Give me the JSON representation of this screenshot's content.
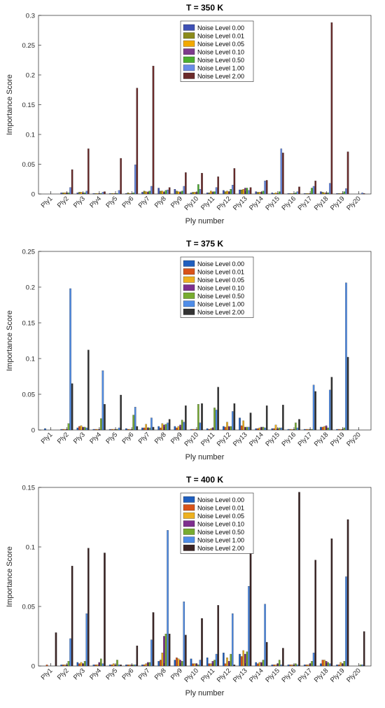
{
  "chart_data": [
    {
      "type": "bar",
      "title": "T = 350 K",
      "xlabel": "Ply number",
      "ylabel": "Importance Score",
      "ylim": [
        0,
        0.3
      ],
      "yticks": [
        "0",
        "0.05",
        "0.1",
        "0.15",
        "0.2",
        "0.25",
        "0.3"
      ],
      "legend_position": "top-center",
      "categories": [
        "Ply1",
        "Ply2",
        "Ply3",
        "Ply4",
        "Ply5",
        "Ply6",
        "Ply7",
        "Ply8",
        "Ply9",
        "Ply10",
        "Ply11",
        "Ply12",
        "Ply13",
        "Ply14",
        "Ply15",
        "Ply16",
        "Ply17",
        "Ply18",
        "Ply19",
        "Ply20"
      ],
      "series": [
        {
          "name": "Noise Level 0.00",
          "color": "#3f51b5",
          "values": [
            0.0,
            0.002,
            0.002,
            0.001,
            0.001,
            0.001,
            0.003,
            0.01,
            0.008,
            0.002,
            0.002,
            0.006,
            0.007,
            0.004,
            0.002,
            0.001,
            0.001,
            0.004,
            0.001,
            0.0
          ]
        },
        {
          "name": "Noise Level 0.01",
          "color": "#8b8b1a",
          "values": [
            0.0,
            0.002,
            0.003,
            0.001,
            0.001,
            0.002,
            0.005,
            0.005,
            0.005,
            0.003,
            0.002,
            0.004,
            0.007,
            0.003,
            0.001,
            0.001,
            0.001,
            0.003,
            0.001,
            0.0
          ]
        },
        {
          "name": "Noise Level 0.05",
          "color": "#f2a900",
          "values": [
            0.0,
            0.002,
            0.003,
            0.001,
            0.001,
            0.001,
            0.004,
            0.005,
            0.004,
            0.003,
            0.005,
            0.005,
            0.008,
            0.003,
            0.002,
            0.001,
            0.001,
            0.002,
            0.001,
            0.0
          ]
        },
        {
          "name": "Noise Level 0.10",
          "color": "#7e3b8c",
          "values": [
            0.0,
            0.002,
            0.002,
            0.001,
            0.001,
            0.001,
            0.003,
            0.003,
            0.003,
            0.003,
            0.003,
            0.004,
            0.01,
            0.003,
            0.001,
            0.001,
            0.001,
            0.002,
            0.001,
            0.0
          ]
        },
        {
          "name": "Noise Level 0.50",
          "color": "#4caf2f",
          "values": [
            0.0,
            0.002,
            0.002,
            0.001,
            0.001,
            0.002,
            0.005,
            0.006,
            0.005,
            0.016,
            0.004,
            0.008,
            0.01,
            0.005,
            0.004,
            0.002,
            0.01,
            0.002,
            0.004,
            0.0
          ]
        },
        {
          "name": "Noise Level 1.00",
          "color": "#6a8ce8",
          "values": [
            0.0,
            0.011,
            0.005,
            0.003,
            0.006,
            0.049,
            0.013,
            0.007,
            0.013,
            0.008,
            0.011,
            0.015,
            0.006,
            0.022,
            0.076,
            0.004,
            0.013,
            0.018,
            0.009,
            0.002
          ]
        },
        {
          "name": "Noise Level 2.00",
          "color": "#6b2a2a",
          "values": [
            0.0,
            0.041,
            0.076,
            0.004,
            0.06,
            0.178,
            0.215,
            0.011,
            0.036,
            0.035,
            0.029,
            0.043,
            0.011,
            0.023,
            0.069,
            0.012,
            0.022,
            0.288,
            0.071,
            0.001
          ]
        }
      ]
    },
    {
      "type": "bar",
      "title": "T = 375 K",
      "xlabel": "Ply number",
      "ylabel": "Importance Score",
      "ylim": [
        0,
        0.25
      ],
      "yticks": [
        "0",
        "0.05",
        "0.1",
        "0.15",
        "0.2",
        "0.25"
      ],
      "legend_position": "top-center",
      "categories": [
        "Ply1",
        "Ply2",
        "Ply3",
        "Ply4",
        "Ply5",
        "Ply6",
        "Ply7",
        "Ply8",
        "Ply9",
        "Ply10",
        "Ply11",
        "Ply12",
        "Ply13",
        "Ply14",
        "Ply15",
        "Ply16",
        "Ply17",
        "Ply18",
        "Ply19",
        "Ply20"
      ],
      "series": [
        {
          "name": "Noise Level 0.00",
          "color": "#1f5fbf",
          "values": [
            0.002,
            0.001,
            0.003,
            0.001,
            0.001,
            0.002,
            0.003,
            0.005,
            0.005,
            0.001,
            0.002,
            0.005,
            0.017,
            0.002,
            0.002,
            0.001,
            0.001,
            0.004,
            0.001,
            0.0
          ]
        },
        {
          "name": "Noise Level 0.01",
          "color": "#d95319",
          "values": [
            0.0,
            0.001,
            0.005,
            0.001,
            0.001,
            0.001,
            0.003,
            0.003,
            0.003,
            0.001,
            0.001,
            0.004,
            0.006,
            0.002,
            0.002,
            0.001,
            0.001,
            0.004,
            0.001,
            0.0
          ]
        },
        {
          "name": "Noise Level 0.05",
          "color": "#edb120",
          "values": [
            0.0,
            0.001,
            0.006,
            0.001,
            0.001,
            0.001,
            0.008,
            0.009,
            0.005,
            0.001,
            0.002,
            0.011,
            0.013,
            0.003,
            0.007,
            0.001,
            0.001,
            0.005,
            0.001,
            0.0
          ]
        },
        {
          "name": "Noise Level 0.10",
          "color": "#7e2f8e",
          "values": [
            0.0,
            0.001,
            0.004,
            0.001,
            0.001,
            0.001,
            0.003,
            0.007,
            0.007,
            0.001,
            0.003,
            0.005,
            0.004,
            0.004,
            0.002,
            0.001,
            0.001,
            0.006,
            0.001,
            0.0
          ]
        },
        {
          "name": "Noise Level 0.50",
          "color": "#77ac30",
          "values": [
            0.0,
            0.009,
            0.004,
            0.016,
            0.001,
            0.021,
            0.003,
            0.008,
            0.014,
            0.036,
            0.031,
            0.005,
            0.004,
            0.004,
            0.003,
            0.01,
            0.001,
            0.003,
            0.003,
            0.0
          ]
        },
        {
          "name": "Noise Level 1.00",
          "color": "#4f8de8",
          "values": [
            0.0,
            0.198,
            0.003,
            0.083,
            0.003,
            0.032,
            0.017,
            0.01,
            0.011,
            0.01,
            0.028,
            0.026,
            0.004,
            0.003,
            0.003,
            0.003,
            0.063,
            0.056,
            0.206,
            0.0
          ]
        },
        {
          "name": "Noise Level 2.00",
          "color": "#333333",
          "values": [
            0.0,
            0.065,
            0.112,
            0.036,
            0.049,
            0.005,
            0.004,
            0.015,
            0.034,
            0.037,
            0.06,
            0.037,
            0.024,
            0.034,
            0.035,
            0.015,
            0.054,
            0.074,
            0.102,
            0.0
          ]
        }
      ]
    },
    {
      "type": "bar",
      "title": "T = 400 K",
      "xlabel": "Ply number",
      "ylabel": "Importance Score",
      "ylim": [
        0,
        0.15
      ],
      "yticks": [
        "0",
        "0.05",
        "0.1",
        "0.15"
      ],
      "legend_position": "top-center",
      "categories": [
        "Ply1",
        "Ply2",
        "Ply3",
        "Ply4",
        "Ply5",
        "Ply6",
        "Ply7",
        "Ply8",
        "Ply9",
        "Ply10",
        "Ply11",
        "Ply12",
        "Ply13",
        "Ply14",
        "Ply15",
        "Ply16",
        "Ply17",
        "Ply18",
        "Ply19",
        "Ply20"
      ],
      "series": [
        {
          "name": "Noise Level 0.00",
          "color": "#1f5fbf",
          "values": [
            0.0,
            0.001,
            0.003,
            0.001,
            0.001,
            0.001,
            0.001,
            0.004,
            0.005,
            0.006,
            0.007,
            0.011,
            0.01,
            0.003,
            0.001,
            0.001,
            0.001,
            0.002,
            0.001,
            0.0
          ]
        },
        {
          "name": "Noise Level 0.01",
          "color": "#d95319",
          "values": [
            0.001,
            0.001,
            0.002,
            0.001,
            0.001,
            0.001,
            0.001,
            0.005,
            0.007,
            0.002,
            0.002,
            0.002,
            0.008,
            0.002,
            0.001,
            0.001,
            0.001,
            0.005,
            0.001,
            0.0
          ]
        },
        {
          "name": "Noise Level 0.05",
          "color": "#edb120",
          "values": [
            0.0,
            0.001,
            0.003,
            0.001,
            0.002,
            0.001,
            0.002,
            0.011,
            0.006,
            0.002,
            0.002,
            0.007,
            0.013,
            0.003,
            0.001,
            0.001,
            0.001,
            0.005,
            0.003,
            0.0
          ]
        },
        {
          "name": "Noise Level 0.10",
          "color": "#7e2f8e",
          "values": [
            0.0,
            0.001,
            0.002,
            0.003,
            0.001,
            0.001,
            0.003,
            0.025,
            0.005,
            0.002,
            0.004,
            0.004,
            0.01,
            0.003,
            0.002,
            0.001,
            0.002,
            0.004,
            0.002,
            0.0
          ]
        },
        {
          "name": "Noise Level 0.50",
          "color": "#77ac30",
          "values": [
            0.0,
            0.004,
            0.004,
            0.006,
            0.005,
            0.001,
            0.003,
            0.027,
            0.004,
            0.001,
            0.005,
            0.01,
            0.012,
            0.005,
            0.005,
            0.002,
            0.004,
            0.003,
            0.004,
            0.001
          ]
        },
        {
          "name": "Noise Level 1.00",
          "color": "#4f8de8",
          "values": [
            0.0,
            0.023,
            0.044,
            0.002,
            0.001,
            0.001,
            0.022,
            0.114,
            0.054,
            0.005,
            0.01,
            0.044,
            0.067,
            0.052,
            0.001,
            0.001,
            0.011,
            0.002,
            0.075,
            0.001
          ]
        },
        {
          "name": "Noise Level 2.00",
          "color": "#3b2424",
          "values": [
            0.028,
            0.084,
            0.099,
            0.095,
            0.001,
            0.017,
            0.045,
            0.027,
            0.026,
            0.04,
            0.051,
            0.001,
            0.106,
            0.02,
            0.015,
            0.146,
            0.089,
            0.107,
            0.123,
            0.029
          ]
        }
      ]
    }
  ]
}
